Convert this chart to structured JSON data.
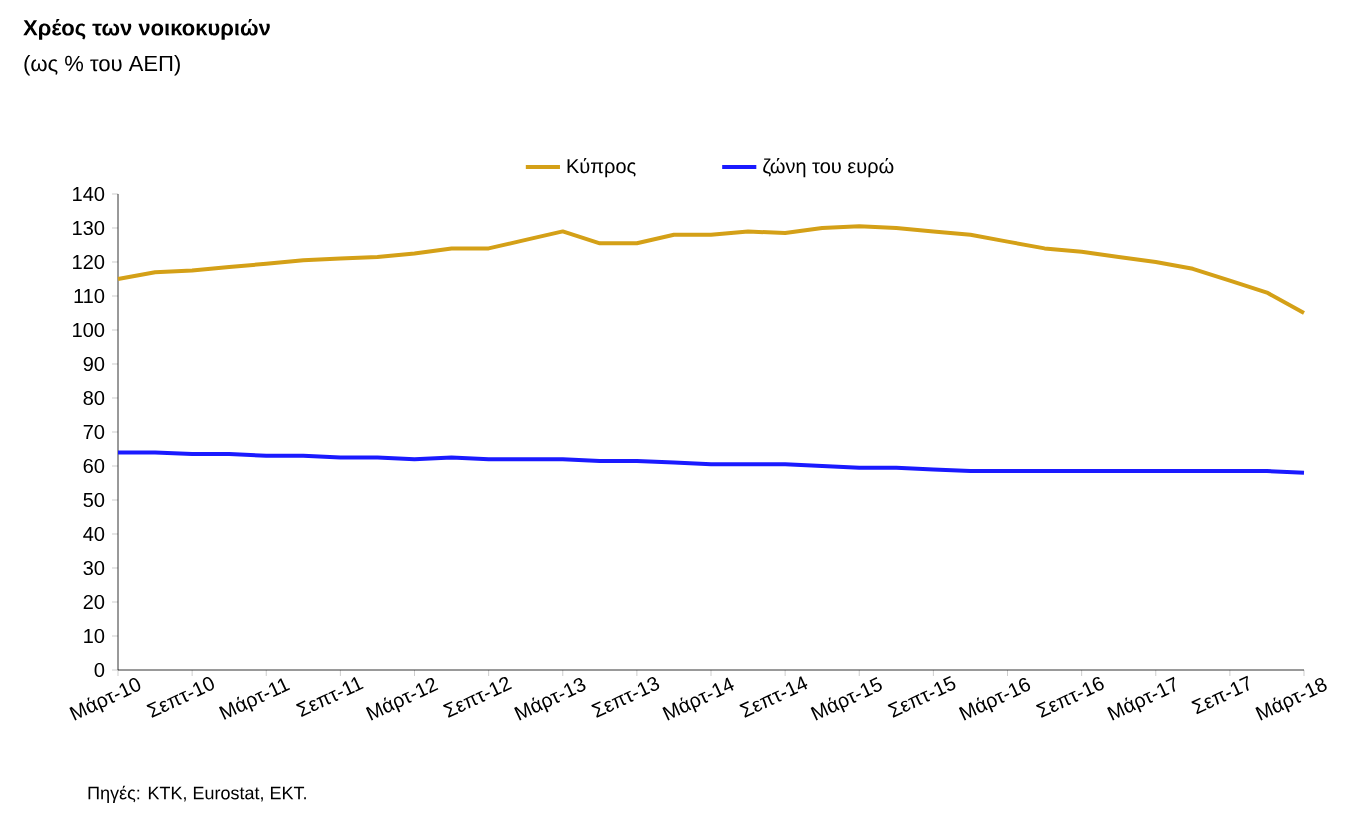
{
  "chart_data": {
    "type": "line",
    "title": "Χρέος των νοικοκυριών",
    "subtitle": "(ως % του ΑΕΠ)",
    "categories": [
      "Μάρτ-10",
      null,
      "Σεπτ-10",
      null,
      "Μάρτ-11",
      null,
      "Σεπτ-11",
      null,
      "Μάρτ-12",
      null,
      "Σεπτ-12",
      null,
      "Μάρτ-13",
      null,
      "Σεπτ-13",
      null,
      "Μάρτ-14",
      null,
      "Σεπτ-14",
      null,
      "Μάρτ-15",
      null,
      "Σεπτ-15",
      null,
      "Μάρτ-16",
      null,
      "Σεπτ-16",
      null,
      "Μάρτ-17",
      null,
      "Σεπ-17",
      null,
      "Μάρτ-18"
    ],
    "series": [
      {
        "name": "Κύπρος",
        "color": "#d4a017",
        "values": [
          115,
          117,
          117.5,
          118.5,
          119.5,
          120.5,
          121,
          121.5,
          122.5,
          124,
          124,
          126.5,
          129,
          125.5,
          125.5,
          128,
          128,
          129,
          128.5,
          130,
          130.5,
          130,
          129,
          128,
          126,
          124,
          123,
          121.5,
          120,
          118,
          114.5,
          111,
          105
        ]
      },
      {
        "name": "ζώνη του ευρώ",
        "color": "#1a1aff",
        "values": [
          64,
          64,
          63.5,
          63.5,
          63,
          63,
          62.5,
          62.5,
          62,
          62.5,
          62,
          62,
          62,
          61.5,
          61.5,
          61,
          60.5,
          60.5,
          60.5,
          60,
          59.5,
          59.5,
          59,
          58.5,
          58.5,
          58.5,
          58.5,
          58.5,
          58.5,
          58.5,
          58.5,
          58.5,
          58
        ]
      }
    ],
    "ylim": [
      0,
      140
    ],
    "yticks": [
      0,
      10,
      20,
      30,
      40,
      50,
      60,
      70,
      80,
      90,
      100,
      110,
      120,
      130,
      140
    ],
    "grid": false,
    "legend": "top",
    "marker": "none",
    "line_style": "solid",
    "annotations": [
      "Πηγές: ΚΤΚ, Eurostat, ΕΚΤ."
    ]
  }
}
